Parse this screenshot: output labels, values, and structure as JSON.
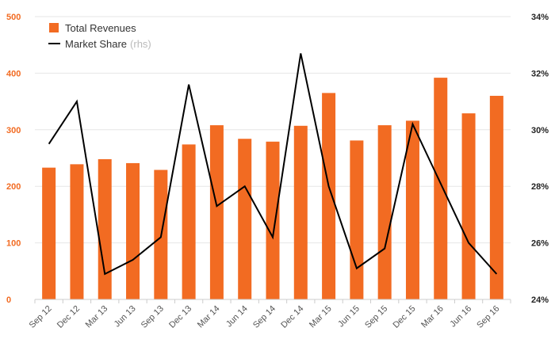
{
  "chart_data": {
    "type": "bar",
    "categories": [
      "Sep 12",
      "Dec 12",
      "Mar 13",
      "Jun 13",
      "Sep 13",
      "Dec 13",
      "Mar 14",
      "Jun 14",
      "Sep 14",
      "Dec 14",
      "Mar 15",
      "Jun 15",
      "Sep 15",
      "Dec 15",
      "Mar 16",
      "Jun 16",
      "Sep 16"
    ],
    "series": [
      {
        "name": "Total Revenues",
        "type": "bar",
        "axis": "left",
        "color": "#f26b22",
        "values": [
          233,
          239,
          248,
          241,
          229,
          274,
          308,
          284,
          279,
          307,
          365,
          281,
          308,
          316,
          392,
          329,
          360
        ]
      },
      {
        "name": "Market Share",
        "legend_note": "(rhs)",
        "type": "line",
        "axis": "right",
        "color": "#000000",
        "values": [
          29.5,
          31.0,
          24.9,
          25.4,
          26.2,
          31.6,
          27.3,
          28.0,
          26.2,
          32.7,
          28.0,
          25.1,
          25.8,
          30.2,
          28.1,
          26.0,
          24.9
        ]
      }
    ],
    "left_axis": {
      "ticks": [
        "0",
        "100",
        "200",
        "300",
        "400",
        "500"
      ],
      "ylim": [
        0,
        500
      ],
      "color": "#f26b22"
    },
    "right_axis": {
      "ticks": [
        "24%",
        "26%",
        "28%",
        "30%",
        "32%",
        "34%"
      ],
      "ylim": [
        24,
        34
      ],
      "color": "#222222"
    },
    "grid": true,
    "legend_position": "top-left"
  }
}
